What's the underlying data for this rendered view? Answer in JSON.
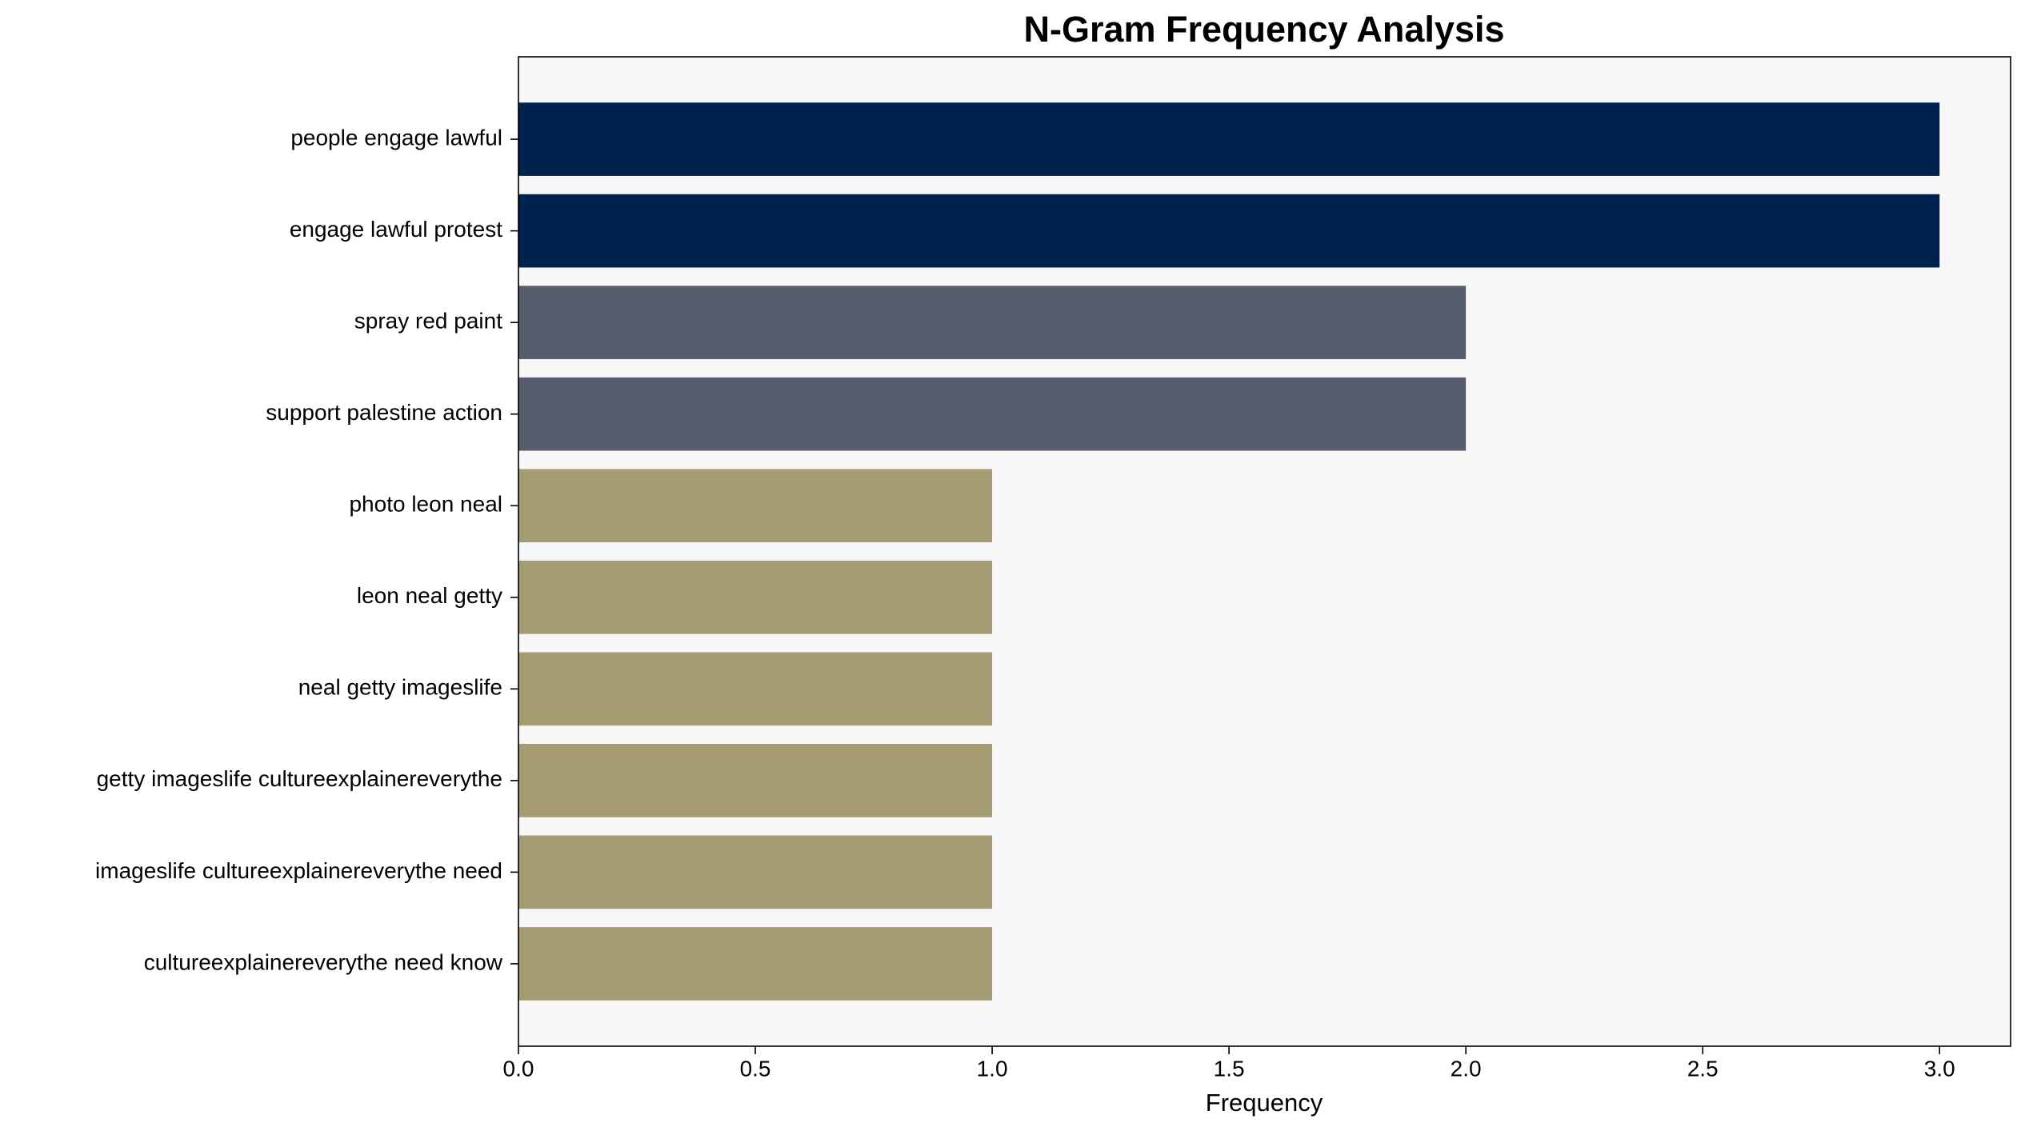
{
  "chart_data": {
    "type": "barh",
    "title": "N-Gram Frequency Analysis",
    "x_label": "Frequency",
    "categories": [
      "people engage lawful",
      "engage lawful protest",
      "spray red paint",
      "support palestine action",
      "photo leon neal",
      "leon neal getty",
      "neal getty imageslife",
      "getty imageslife cultureexplainereverythe",
      "imageslife cultureexplainereverythe need",
      "cultureexplainereverythe need know"
    ],
    "values": [
      3,
      3,
      2,
      2,
      1,
      1,
      1,
      1,
      1,
      1
    ],
    "colors": [
      "#00224e",
      "#00224e",
      "#575d6d",
      "#575d6d",
      "#a59c74",
      "#a59c74",
      "#a59c74",
      "#a59c74",
      "#a59c74",
      "#a59c74"
    ],
    "xlim": [
      0,
      3.15
    ],
    "xticks": [
      {
        "value": 0,
        "label": "0.0"
      },
      0.5,
      {
        "value": 1,
        "label": "1.0"
      },
      1.5,
      {
        "value": 2,
        "label": "2.0"
      },
      2.5,
      {
        "value": 3,
        "label": "3.0"
      }
    ],
    "grid": false
  }
}
